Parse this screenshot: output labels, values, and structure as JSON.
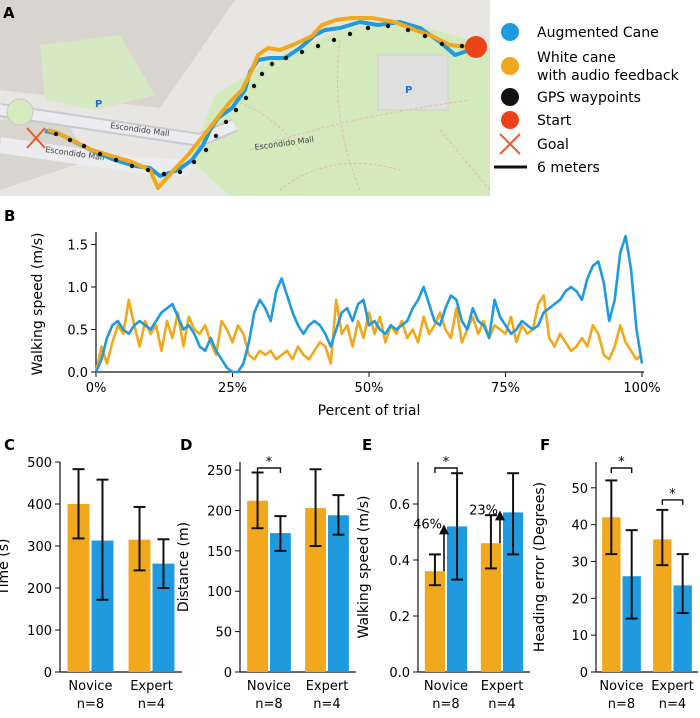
{
  "colors": {
    "augmented": "#1f9ade",
    "white_cane": "#f2a81d",
    "waypoint": "#111111",
    "start": "#ee4318",
    "goal": "#ee5a2a",
    "map_bg": "#e9e7e3",
    "park": "#d6ebbf",
    "building": "#d9d5cf"
  },
  "panel_a": {
    "letter": "A",
    "legend": [
      {
        "key": "augmented",
        "label": "Augmented Cane",
        "label2": ""
      },
      {
        "key": "white_cane",
        "label": "White cane",
        "label2": "with audio feedback"
      },
      {
        "key": "waypoints",
        "label": "GPS waypoints",
        "label2": ""
      },
      {
        "key": "start",
        "label": "Start",
        "label2": ""
      },
      {
        "key": "goal",
        "label": "Goal",
        "label2": ""
      },
      {
        "key": "scale",
        "label": "6 meters",
        "label2": ""
      }
    ],
    "map_labels": {
      "street1": "Escondido Mall",
      "street2": "Escondido Mall",
      "street3": "Escondido Mall",
      "parking1": "P",
      "parking2": "P"
    }
  },
  "chart_data": [
    {
      "panel": "B",
      "type": "line",
      "ylabel": "Walking speed (m/s)",
      "xlabel": "Percent of trial",
      "ylim": [
        0,
        1.6
      ],
      "xlim": [
        0,
        100
      ],
      "yticks": [
        "0.0",
        "0.5",
        "1.0",
        "1.5"
      ],
      "xticks": [
        "0%",
        "25%",
        "50%",
        "75%",
        "100%"
      ],
      "series": [
        {
          "name": "Augmented Cane",
          "key": "augmented",
          "x": [
            0,
            1,
            2,
            3,
            4,
            5,
            6,
            7,
            8,
            9,
            10,
            11,
            12,
            13,
            14,
            15,
            16,
            17,
            18,
            19,
            20,
            21,
            22,
            23,
            24,
            25,
            26,
            27,
            28,
            29,
            30,
            31,
            32,
            33,
            34,
            35,
            36,
            37,
            38,
            39,
            40,
            41,
            42,
            43,
            44,
            45,
            46,
            47,
            48,
            49,
            50,
            51,
            52,
            53,
            54,
            55,
            56,
            57,
            58,
            59,
            60,
            61,
            62,
            63,
            64,
            65,
            66,
            67,
            68,
            69,
            70,
            71,
            72,
            73,
            74,
            75,
            76,
            77,
            78,
            79,
            80,
            81,
            82,
            83,
            84,
            85,
            86,
            87,
            88,
            89,
            90,
            91,
            92,
            93,
            94,
            95,
            96,
            97,
            98,
            99,
            100
          ],
          "values": [
            0.0,
            0.15,
            0.4,
            0.55,
            0.6,
            0.5,
            0.45,
            0.55,
            0.6,
            0.55,
            0.5,
            0.6,
            0.7,
            0.75,
            0.8,
            0.65,
            0.5,
            0.55,
            0.45,
            0.3,
            0.25,
            0.4,
            0.25,
            0.15,
            0.05,
            0.0,
            0.0,
            0.1,
            0.35,
            0.7,
            0.85,
            0.75,
            0.6,
            0.95,
            1.1,
            0.9,
            0.7,
            0.55,
            0.45,
            0.55,
            0.6,
            0.55,
            0.45,
            0.3,
            0.5,
            0.7,
            0.75,
            0.6,
            0.8,
            0.85,
            0.55,
            0.6,
            0.5,
            0.45,
            0.55,
            0.5,
            0.55,
            0.6,
            0.75,
            0.85,
            1.0,
            0.8,
            0.6,
            0.55,
            0.75,
            0.9,
            0.85,
            0.6,
            0.5,
            0.75,
            0.6,
            0.55,
            0.4,
            0.85,
            0.65,
            0.55,
            0.45,
            0.5,
            0.6,
            0.55,
            0.5,
            0.55,
            0.7,
            0.75,
            0.8,
            0.85,
            0.95,
            1.0,
            0.95,
            0.85,
            1.1,
            1.25,
            1.3,
            1.05,
            0.6,
            0.85,
            1.4,
            1.6,
            1.2,
            0.5,
            0.1
          ]
        },
        {
          "name": "White cane with audio feedback",
          "key": "white_cane",
          "x": [
            0,
            1,
            2,
            3,
            4,
            5,
            6,
            7,
            8,
            9,
            10,
            11,
            12,
            13,
            14,
            15,
            16,
            17,
            18,
            19,
            20,
            21,
            22,
            23,
            24,
            25,
            26,
            27,
            28,
            29,
            30,
            31,
            32,
            33,
            34,
            35,
            36,
            37,
            38,
            39,
            40,
            41,
            42,
            43,
            44,
            45,
            46,
            47,
            48,
            49,
            50,
            51,
            52,
            53,
            54,
            55,
            56,
            57,
            58,
            59,
            60,
            61,
            62,
            63,
            64,
            65,
            66,
            67,
            68,
            69,
            70,
            71,
            72,
            73,
            74,
            75,
            76,
            77,
            78,
            79,
            80,
            81,
            82,
            83,
            84,
            85,
            86,
            87,
            88,
            89,
            90,
            91,
            92,
            93,
            94,
            95,
            96,
            97,
            98,
            99,
            100
          ],
          "values": [
            0.0,
            0.3,
            0.1,
            0.35,
            0.55,
            0.45,
            0.85,
            0.55,
            0.3,
            0.6,
            0.45,
            0.55,
            0.25,
            0.6,
            0.4,
            0.7,
            0.3,
            0.65,
            0.5,
            0.45,
            0.55,
            0.35,
            0.2,
            0.6,
            0.5,
            0.35,
            0.55,
            0.45,
            0.2,
            0.15,
            0.25,
            0.2,
            0.25,
            0.15,
            0.2,
            0.25,
            0.15,
            0.3,
            0.2,
            0.15,
            0.25,
            0.35,
            0.3,
            0.1,
            0.85,
            0.45,
            0.55,
            0.3,
            0.6,
            0.4,
            0.7,
            0.45,
            0.65,
            0.35,
            0.55,
            0.45,
            0.6,
            0.4,
            0.5,
            0.35,
            0.65,
            0.45,
            0.55,
            0.7,
            0.5,
            0.4,
            0.75,
            0.35,
            0.5,
            0.65,
            0.45,
            0.6,
            0.4,
            0.55,
            0.5,
            0.45,
            0.65,
            0.35,
            0.55,
            0.45,
            0.5,
            0.8,
            0.9,
            0.4,
            0.3,
            0.45,
            0.35,
            0.25,
            0.3,
            0.4,
            0.3,
            0.55,
            0.45,
            0.2,
            0.15,
            0.3,
            0.55,
            0.35,
            0.25,
            0.15,
            0.2
          ]
        }
      ]
    },
    {
      "panel": "C",
      "type": "bar",
      "ylabel": "Time (s)",
      "ylim": [
        0,
        500
      ],
      "yticks": [
        0,
        100,
        200,
        300,
        400,
        500
      ],
      "categories": [
        "Novice",
        "Expert"
      ],
      "cat_n": [
        "n=8",
        "n=4"
      ],
      "series": [
        {
          "name": "White cane with audio feedback",
          "key": "white_cane",
          "values": [
            400,
            315
          ],
          "err_low": [
            318,
            242
          ],
          "err_high": [
            483,
            393
          ]
        },
        {
          "name": "Augmented Cane",
          "key": "augmented",
          "values": [
            313,
            258
          ],
          "err_low": [
            172,
            200
          ],
          "err_high": [
            458,
            316
          ]
        }
      ],
      "significance": [],
      "percent_labels": []
    },
    {
      "panel": "D",
      "type": "bar",
      "ylabel": "Distance (m)",
      "ylim": [
        0,
        260
      ],
      "yticks": [
        0,
        50,
        100,
        150,
        200,
        250
      ],
      "categories": [
        "Novice",
        "Expert"
      ],
      "cat_n": [
        "n=8",
        "n=4"
      ],
      "series": [
        {
          "name": "White cane with audio feedback",
          "key": "white_cane",
          "values": [
            212,
            203
          ],
          "err_low": [
            178,
            156
          ],
          "err_high": [
            247,
            251
          ]
        },
        {
          "name": "Augmented Cane",
          "key": "augmented",
          "values": [
            172,
            194
          ],
          "err_low": [
            150,
            170
          ],
          "err_high": [
            193,
            219
          ]
        }
      ],
      "significance": [
        {
          "group": 0,
          "label": "*"
        }
      ],
      "percent_labels": []
    },
    {
      "panel": "E",
      "type": "bar",
      "ylabel": "Walking speed (m/s)",
      "ylim": [
        0,
        0.75
      ],
      "yticks": [
        "0.0",
        "0.2",
        "0.4",
        "0.6"
      ],
      "categories": [
        "Novice",
        "Expert"
      ],
      "cat_n": [
        "n=8",
        "n=4"
      ],
      "series": [
        {
          "name": "White cane with audio feedback",
          "key": "white_cane",
          "values": [
            0.36,
            0.46
          ],
          "err_low": [
            0.31,
            0.37
          ],
          "err_high": [
            0.42,
            0.56
          ]
        },
        {
          "name": "Augmented Cane",
          "key": "augmented",
          "values": [
            0.52,
            0.57
          ],
          "err_low": [
            0.33,
            0.42
          ],
          "err_high": [
            0.71,
            0.71
          ]
        }
      ],
      "significance": [
        {
          "group": 0,
          "label": "*"
        }
      ],
      "percent_labels": [
        {
          "group": 0,
          "label": "46%"
        },
        {
          "group": 1,
          "label": "23%"
        }
      ]
    },
    {
      "panel": "F",
      "type": "bar",
      "ylabel": "Heading error (Degrees)",
      "ylim": [
        0,
        57
      ],
      "yticks": [
        0,
        10,
        20,
        30,
        40,
        50
      ],
      "categories": [
        "Novice",
        "Expert"
      ],
      "cat_n": [
        "n=8",
        "n=4"
      ],
      "series": [
        {
          "name": "White cane with audio feedback",
          "key": "white_cane",
          "values": [
            42,
            36
          ],
          "err_low": [
            32,
            29
          ],
          "err_high": [
            52,
            44
          ]
        },
        {
          "name": "Augmented Cane",
          "key": "augmented",
          "values": [
            26,
            23.5
          ],
          "err_low": [
            14.5,
            16
          ],
          "err_high": [
            38.5,
            32
          ]
        }
      ],
      "significance": [
        {
          "group": 0,
          "label": "*"
        },
        {
          "group": 1,
          "label": "*"
        }
      ],
      "percent_labels": []
    }
  ]
}
